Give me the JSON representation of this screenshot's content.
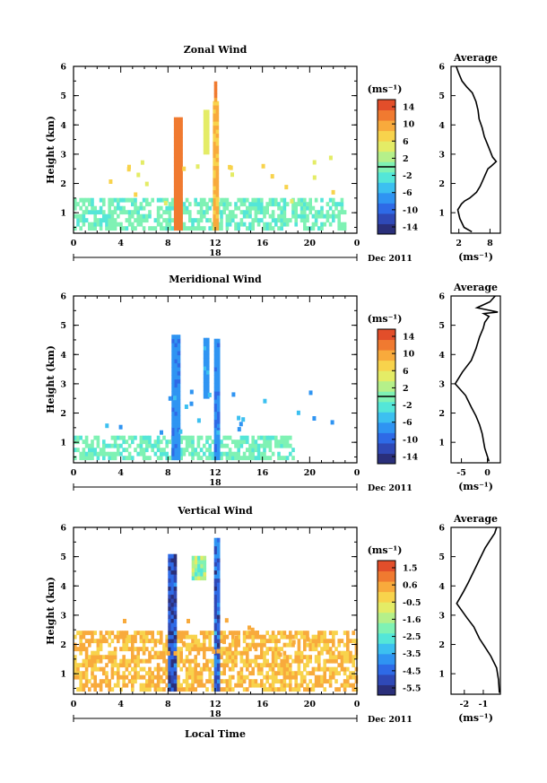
{
  "colormap": [
    "#2a2f7a",
    "#2f49b6",
    "#2e6ae6",
    "#2f94f2",
    "#3cc0f0",
    "#54e6d8",
    "#7ff2b4",
    "#b5f08a",
    "#e4ec66",
    "#f8d34c",
    "#f8aa3c",
    "#f07a30",
    "#e24e2a"
  ],
  "cells": {
    "low": "#7ff2b4",
    "vlow": "#f8d34c",
    "vband": "#2f49b6",
    "zband": "#f07a30"
  },
  "panels": [
    {
      "title": "Zonal Wind",
      "ylabel": "Height (km)",
      "yticks": [
        "1",
        "2",
        "3",
        "4",
        "5",
        "6"
      ],
      "xticks": [
        "0",
        "4",
        "8",
        "12",
        "16",
        "20",
        "0"
      ],
      "day": "18",
      "month": "Dec 2011",
      "colorbar_unit": "(ms⁻¹)",
      "colorbar_ticks": [
        "14",
        "10",
        "6",
        "2",
        "-2",
        "-6",
        "-10",
        "-14"
      ],
      "avg_title": "Average",
      "avg_xticks": [
        "2",
        "8"
      ],
      "avg_xunit": "(ms⁻¹)",
      "avg_yticks": [
        "1",
        "2",
        "3",
        "4",
        "5",
        "6"
      ]
    },
    {
      "title": "Meridional Wind",
      "ylabel": "Height (km)",
      "yticks": [
        "1",
        "2",
        "3",
        "4",
        "5",
        "6"
      ],
      "xticks": [
        "0",
        "4",
        "8",
        "12",
        "16",
        "20",
        "0"
      ],
      "day": "18",
      "month": "Dec 2011",
      "colorbar_unit": "(ms⁻¹)",
      "colorbar_ticks": [
        "14",
        "10",
        "6",
        "2",
        "-2",
        "-6",
        "-10",
        "-14"
      ],
      "avg_title": "Average",
      "avg_xticks": [
        "-5",
        "0"
      ],
      "avg_xunit": "(ms⁻¹)",
      "avg_yticks": [
        "1",
        "2",
        "3",
        "4",
        "5",
        "6"
      ]
    },
    {
      "title": "Vertical Wind",
      "ylabel": "Height (km)",
      "yticks": [
        "1",
        "2",
        "3",
        "4",
        "5",
        "6"
      ],
      "xticks": [
        "0",
        "4",
        "8",
        "12",
        "16",
        "20",
        "0"
      ],
      "day": "18",
      "month": "Dec 2011",
      "colorbar_unit": "(ms⁻¹)",
      "colorbar_ticks": [
        "1.5",
        "0.6",
        "-0.5",
        "-1.6",
        "-2.5",
        "-3.5",
        "-4.5",
        "-5.5"
      ],
      "avg_title": "Average",
      "avg_xticks": [
        "-2",
        "-1"
      ],
      "avg_xunit": "(ms⁻¹)",
      "avg_yticks": [
        "1",
        "2",
        "3",
        "4",
        "5",
        "6"
      ]
    }
  ],
  "xlabel": "Local Time",
  "chart_data": [
    {
      "type": "heatmap",
      "title": "Zonal Wind",
      "xlabel": "",
      "ylabel": "Height (km)",
      "xlim": [
        0,
        24
      ],
      "ylim": [
        0.3,
        6
      ],
      "colorbar_range": [
        -16,
        16
      ],
      "colorbar_zero_line": 0,
      "regions": [
        {
          "x": [
            0,
            23
          ],
          "y": [
            0.4,
            1.5
          ],
          "value": -1
        },
        {
          "x": [
            8.5,
            9.0
          ],
          "y": [
            0.4,
            4.2
          ],
          "value": 12
        },
        {
          "x": [
            11.8,
            12.1
          ],
          "y": [
            0.4,
            4.8
          ],
          "value": 9
        },
        {
          "x": [
            11.9,
            12.05
          ],
          "y": [
            4.8,
            5.4
          ],
          "value": 12
        },
        {
          "x": [
            11.0,
            11.4
          ],
          "y": [
            3.0,
            4.5
          ],
          "value": 5
        }
      ]
    },
    {
      "type": "line",
      "title": "Average",
      "xlabel": "(ms⁻¹)",
      "ylabel": "",
      "xlim": [
        0.5,
        10
      ],
      "ylim": [
        0.3,
        6
      ],
      "series": [
        {
          "x": [
            4.5,
            3.0,
            2.2,
            1.8,
            2.5,
            3.1,
            4.1,
            5.4,
            6.1,
            6.6,
            7.1,
            7.6,
            8.3,
            9.2,
            8.5,
            7.6,
            6.9,
            6.5,
            5.9,
            5.7,
            5.3,
            4.6,
            3.5,
            2.6,
            1.9,
            1.5
          ],
          "y": [
            0.35,
            0.5,
            0.8,
            1.1,
            1.3,
            1.4,
            1.5,
            1.7,
            1.9,
            2.1,
            2.3,
            2.5,
            2.6,
            2.75,
            2.9,
            3.3,
            3.6,
            3.9,
            4.2,
            4.5,
            4.8,
            5.1,
            5.3,
            5.5,
            5.8,
            6.0
          ]
        }
      ]
    },
    {
      "type": "heatmap",
      "title": "Meridional Wind",
      "xlabel": "",
      "ylabel": "Height (km)",
      "xlim": [
        0,
        24
      ],
      "ylim": [
        0.3,
        6
      ],
      "colorbar_range": [
        -16,
        16
      ],
      "colorbar_zero_line": 0,
      "regions": [
        {
          "x": [
            0,
            18.5
          ],
          "y": [
            0.4,
            1.2
          ],
          "value": -1
        },
        {
          "x": [
            8.3,
            8.8
          ],
          "y": [
            0.4,
            4.6
          ],
          "value": -8
        },
        {
          "x": [
            11.0,
            11.3
          ],
          "y": [
            2.5,
            4.5
          ],
          "value": -7
        },
        {
          "x": [
            11.9,
            12.2
          ],
          "y": [
            0.4,
            4.4
          ],
          "value": -8
        }
      ]
    },
    {
      "type": "line",
      "title": "Average",
      "xlabel": "(ms⁻¹)",
      "ylabel": "",
      "xlim": [
        -7,
        2.5
      ],
      "ylim": [
        0.3,
        6
      ],
      "series": [
        {
          "x": [
            0.3,
            -0.5,
            -1.0,
            -1.5,
            -2.2,
            -3.1,
            -4.2,
            -6.2,
            -4.8,
            -3.1,
            -2.2,
            -1.5,
            -0.8,
            -0.5,
            0.3,
            -0.7,
            2.0,
            -2.0,
            0.5,
            1.5
          ],
          "y": [
            0.35,
            0.8,
            1.3,
            1.6,
            1.9,
            2.2,
            2.6,
            3.0,
            3.4,
            3.8,
            4.2,
            4.6,
            4.9,
            5.1,
            5.3,
            5.4,
            5.45,
            5.6,
            5.8,
            6.0
          ]
        }
      ]
    },
    {
      "type": "heatmap",
      "title": "Vertical Wind",
      "xlabel": "Local Time",
      "ylabel": "Height (km)",
      "xlim": [
        0,
        24
      ],
      "ylim": [
        0.3,
        6
      ],
      "colorbar_range": [
        -6,
        2
      ],
      "regions": [
        {
          "x": [
            0,
            24
          ],
          "y": [
            0.4,
            2.4
          ],
          "value": 0.2
        },
        {
          "x": [
            8.0,
            8.5
          ],
          "y": [
            0.4,
            5.0
          ],
          "value": -5
        },
        {
          "x": [
            11.9,
            12.3
          ],
          "y": [
            0.4,
            5.6
          ],
          "value": -4.5
        },
        {
          "x": [
            10.0,
            11.0
          ],
          "y": [
            4.2,
            5.0
          ],
          "value": -1.6
        }
      ]
    },
    {
      "type": "line",
      "title": "Average",
      "xlabel": "(ms⁻¹)",
      "ylabel": "",
      "xlim": [
        -2.7,
        -0.1
      ],
      "ylim": [
        0.3,
        6
      ],
      "series": [
        {
          "x": [
            -0.15,
            -0.2,
            -0.3,
            -0.6,
            -0.9,
            -1.2,
            -1.5,
            -1.85,
            -2.4,
            -2.05,
            -1.8,
            -1.5,
            -1.2,
            -0.9,
            -0.6,
            -0.4,
            -0.3
          ],
          "y": [
            0.35,
            0.8,
            1.2,
            1.6,
            1.9,
            2.2,
            2.6,
            2.9,
            3.4,
            3.8,
            4.1,
            4.5,
            4.9,
            5.3,
            5.6,
            5.8,
            6.0
          ]
        }
      ]
    }
  ]
}
